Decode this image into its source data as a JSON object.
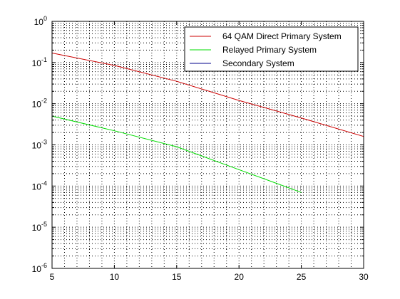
{
  "chart_data": {
    "type": "line",
    "title": "",
    "xlabel": "",
    "ylabel": "",
    "x_scale": "linear",
    "y_scale": "log",
    "xlim": [
      5,
      30
    ],
    "ylim": [
      1e-06,
      1
    ],
    "x_ticks": [
      "5",
      "10",
      "15",
      "20",
      "25",
      "30"
    ],
    "y_ticks": [
      {
        "base": "10",
        "exp": "0"
      },
      {
        "base": "10",
        "exp": "-1"
      },
      {
        "base": "10",
        "exp": "-2"
      },
      {
        "base": "10",
        "exp": "-3"
      },
      {
        "base": "10",
        "exp": "-4"
      },
      {
        "base": "10",
        "exp": "-5"
      },
      {
        "base": "10",
        "exp": "-6"
      }
    ],
    "grid": "on, dotted, with minor log gridlines",
    "legend_position": "top-right",
    "series": [
      {
        "name": "64 QAM Direct Primary System",
        "color": "#cc0000",
        "x": [
          5,
          10,
          15,
          20,
          25,
          30
        ],
        "y": [
          0.17,
          0.085,
          0.035,
          0.012,
          0.0045,
          0.0016
        ]
      },
      {
        "name": "Relayed Primary System",
        "color": "#00dd00",
        "x": [
          5,
          10,
          15,
          20,
          25
        ],
        "y": [
          0.005,
          0.0022,
          0.0009,
          0.00025,
          7e-05
        ]
      },
      {
        "name": "Secondary System",
        "color": "#00008b",
        "x": [],
        "y": []
      }
    ]
  }
}
